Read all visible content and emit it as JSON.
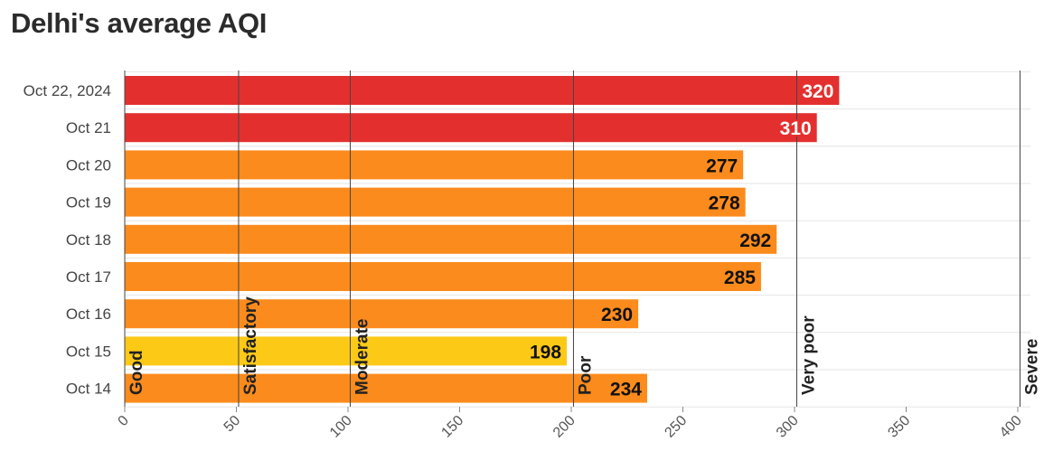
{
  "title": "Delhi's average AQI",
  "chart_data": {
    "type": "bar",
    "orientation": "horizontal",
    "title": "Delhi's average AQI",
    "categories": [
      "Oct 22, 2024",
      "Oct 21",
      "Oct 20",
      "Oct 19",
      "Oct 18",
      "Oct 17",
      "Oct 16",
      "Oct 15",
      "Oct 14"
    ],
    "values": [
      320,
      310,
      277,
      278,
      292,
      285,
      230,
      198,
      234
    ],
    "bar_colors": [
      "#e3302f",
      "#e3302f",
      "#fc8b1d",
      "#fc8b1d",
      "#fc8b1d",
      "#fc8b1d",
      "#fc8b1d",
      "#fdc917",
      "#fc8b1d"
    ],
    "value_label_colors": [
      "#ffffff",
      "#ffffff",
      "#111111",
      "#111111",
      "#111111",
      "#111111",
      "#111111",
      "#111111",
      "#111111"
    ],
    "xlim": [
      0,
      400
    ],
    "xticks": [
      "0",
      "50",
      "100",
      "150",
      "200",
      "250",
      "300",
      "350",
      "400"
    ],
    "xtick_values": [
      0,
      50,
      100,
      150,
      200,
      250,
      300,
      350,
      400
    ],
    "reference_lines": [
      {
        "value": 0,
        "label": "Good"
      },
      {
        "value": 51,
        "label": "Satisfactory"
      },
      {
        "value": 101,
        "label": "Moderate"
      },
      {
        "value": 201,
        "label": "Poor"
      },
      {
        "value": 301,
        "label": "Very poor"
      },
      {
        "value": 401,
        "label": "Severe"
      }
    ],
    "grid": true,
    "legend": "none"
  }
}
